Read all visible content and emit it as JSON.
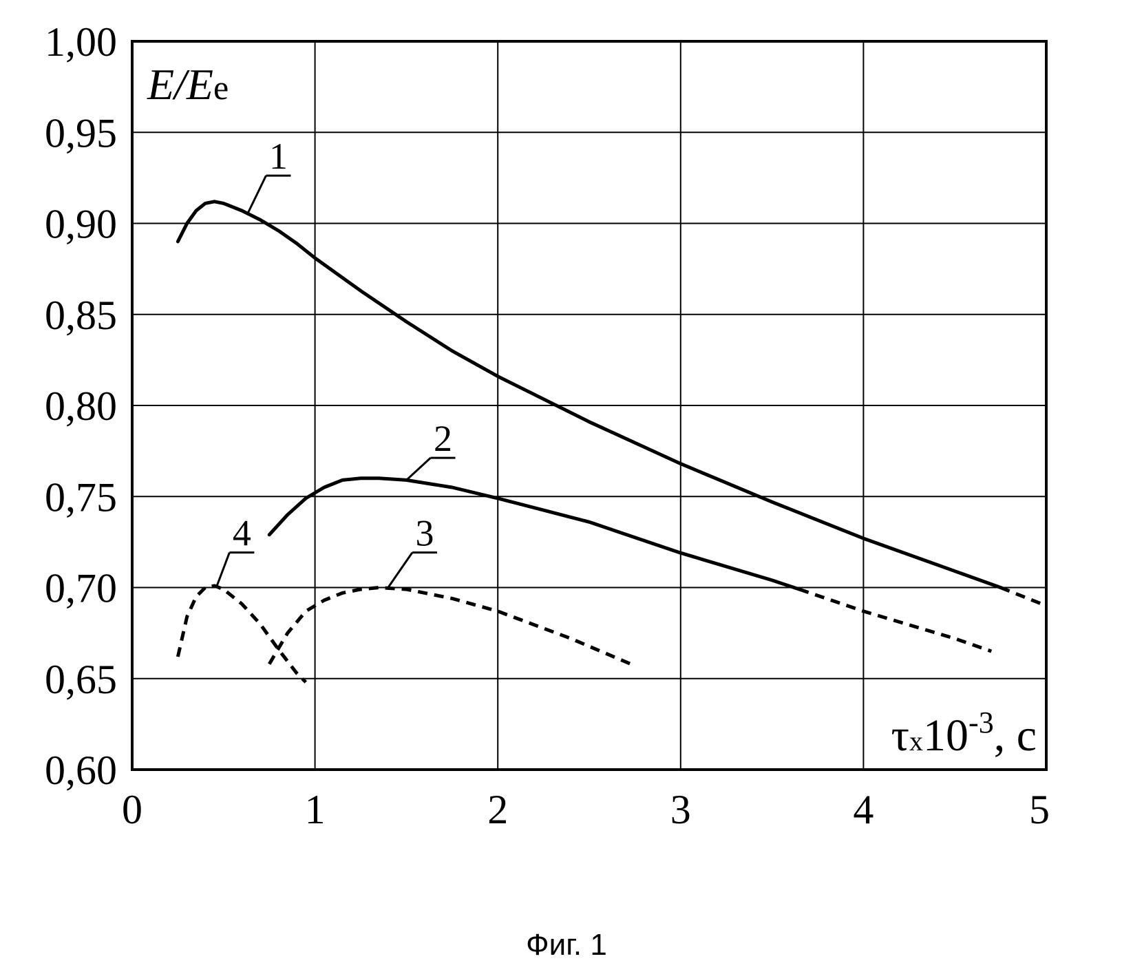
{
  "figure": {
    "caption": "Фиг. 1"
  },
  "chart_data": {
    "type": "line",
    "ylabel_main": "E/E",
    "ylabel_sub": "e",
    "xlabel_main": "τ",
    "xlabel_sub": "x",
    "xlabel_rest": "10",
    "xlabel_exp": "-3",
    "xlabel_unit": ", с",
    "xlim": [
      0,
      5
    ],
    "ylim": [
      0.6,
      1.0
    ],
    "xticks": [
      0,
      1,
      2,
      3,
      4,
      5
    ],
    "xtick_labels": [
      "0",
      "1",
      "2",
      "3",
      "4",
      "5"
    ],
    "yticks": [
      0.6,
      0.65,
      0.7,
      0.75,
      0.8,
      0.85,
      0.9,
      0.95,
      1.0
    ],
    "ytick_labels": [
      "0,60",
      "0,65",
      "0,70",
      "0,75",
      "0,80",
      "0,85",
      "0,90",
      "0,95",
      "1,00"
    ],
    "grid": true,
    "series": [
      {
        "label": "1",
        "label_at": [
          0.8,
          0.93
        ],
        "leader_to": [
          0.63,
          0.905
        ],
        "segments": [
          {
            "dashed": false,
            "points": [
              [
                0.25,
                0.89
              ],
              [
                0.3,
                0.9
              ],
              [
                0.35,
                0.907
              ],
              [
                0.4,
                0.911
              ],
              [
                0.45,
                0.912
              ],
              [
                0.5,
                0.911
              ],
              [
                0.6,
                0.907
              ],
              [
                0.7,
                0.902
              ],
              [
                0.8,
                0.896
              ],
              [
                0.9,
                0.889
              ],
              [
                1.0,
                0.881
              ],
              [
                1.25,
                0.863
              ],
              [
                1.5,
                0.846
              ],
              [
                1.75,
                0.83
              ],
              [
                2.0,
                0.816
              ],
              [
                2.5,
                0.791
              ],
              [
                3.0,
                0.768
              ],
              [
                3.5,
                0.747
              ],
              [
                4.0,
                0.727
              ],
              [
                4.5,
                0.709
              ],
              [
                4.75,
                0.7
              ]
            ]
          },
          {
            "dashed": true,
            "points": [
              [
                4.75,
                0.7
              ],
              [
                5.0,
                0.69
              ]
            ]
          }
        ]
      },
      {
        "label": "2",
        "label_at": [
          1.7,
          0.775
        ],
        "leader_to": [
          1.5,
          0.759
        ],
        "segments": [
          {
            "dashed": false,
            "points": [
              [
                0.75,
                0.729
              ],
              [
                0.85,
                0.74
              ],
              [
                0.95,
                0.749
              ],
              [
                1.05,
                0.755
              ],
              [
                1.15,
                0.759
              ],
              [
                1.25,
                0.76
              ],
              [
                1.35,
                0.76
              ],
              [
                1.5,
                0.759
              ],
              [
                1.75,
                0.755
              ],
              [
                2.0,
                0.749
              ],
              [
                2.5,
                0.736
              ],
              [
                3.0,
                0.719
              ],
              [
                3.5,
                0.704
              ],
              [
                3.65,
                0.699
              ]
            ]
          },
          {
            "dashed": true,
            "points": [
              [
                3.65,
                0.699
              ],
              [
                4.0,
                0.687
              ],
              [
                4.5,
                0.672
              ],
              [
                4.7,
                0.665
              ]
            ]
          }
        ]
      },
      {
        "label": "3",
        "label_at": [
          1.6,
          0.723
        ],
        "leader_to": [
          1.4,
          0.7
        ],
        "segments": [
          {
            "dashed": true,
            "points": [
              [
                0.75,
                0.658
              ],
              [
                0.85,
                0.675
              ],
              [
                0.95,
                0.687
              ],
              [
                1.05,
                0.693
              ],
              [
                1.15,
                0.697
              ],
              [
                1.25,
                0.699
              ],
              [
                1.35,
                0.7
              ],
              [
                1.5,
                0.699
              ],
              [
                1.75,
                0.694
              ],
              [
                2.0,
                0.687
              ],
              [
                2.4,
                0.672
              ],
              [
                2.75,
                0.657
              ]
            ]
          }
        ]
      },
      {
        "label": "4",
        "label_at": [
          0.6,
          0.723
        ],
        "leader_to": [
          0.46,
          0.7
        ],
        "segments": [
          {
            "dashed": true,
            "points": [
              [
                0.25,
                0.662
              ],
              [
                0.3,
                0.684
              ],
              [
                0.35,
                0.695
              ],
              [
                0.4,
                0.7
              ],
              [
                0.45,
                0.701
              ],
              [
                0.5,
                0.699
              ],
              [
                0.6,
                0.691
              ],
              [
                0.7,
                0.68
              ],
              [
                0.8,
                0.666
              ],
              [
                0.9,
                0.653
              ],
              [
                0.95,
                0.648
              ]
            ]
          }
        ]
      }
    ]
  }
}
